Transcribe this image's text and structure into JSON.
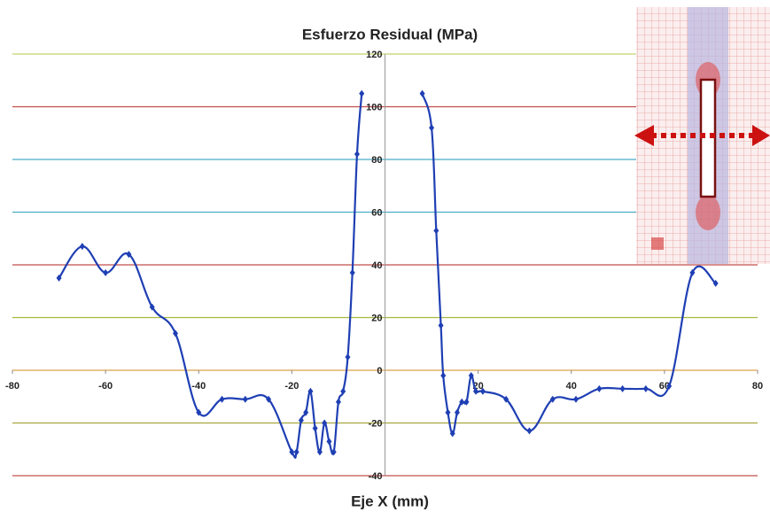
{
  "chart_data": {
    "type": "line",
    "title": "Esfuerzo Residual (MPa)",
    "x_label": "Eje X (mm)",
    "series": [
      {
        "color": "#1f3fb4",
        "x": [
          -70,
          -65,
          -60,
          -55,
          -50,
          -45,
          -40,
          -35,
          -30,
          -25,
          -20,
          -19,
          -18,
          -17,
          -16,
          -15,
          -14,
          -13,
          -12,
          -11,
          -10,
          -9,
          -8,
          -7,
          -6,
          -5
        ],
        "values": [
          35,
          47,
          37,
          44,
          24,
          14,
          -16,
          -11,
          -11,
          -11,
          -31,
          -31,
          -19,
          -16,
          -8,
          -22,
          -31,
          -20,
          -27,
          -31,
          -12,
          -8,
          5,
          37,
          82,
          105
        ]
      },
      {
        "color": "#1f3fb4",
        "x": [
          8,
          10,
          11,
          12,
          12.5,
          13.5,
          14.5,
          15.5,
          16.5,
          17.5,
          18.5,
          19.5,
          21,
          26,
          31,
          36,
          41,
          46,
          51,
          56,
          61,
          66,
          71
        ],
        "values": [
          105,
          92,
          53,
          17,
          -2,
          -16,
          -24,
          -16,
          -12,
          -12,
          -2,
          -8,
          -8,
          -11,
          -23,
          -11,
          -11,
          -7,
          -7,
          -7,
          -6,
          37,
          33
        ]
      }
    ],
    "xlim": [
      -80,
      80
    ],
    "xticks": [
      -80,
      -60,
      -40,
      -20,
      20,
      40,
      60,
      80
    ],
    "ylim": [
      -40,
      120
    ],
    "yticks": [
      -40,
      -20,
      0,
      20,
      40,
      60,
      80,
      100,
      120
    ],
    "grid": true,
    "grid_colors": [
      "#c0504d",
      "#a6a640",
      "#d9a04a",
      "#a6b83f",
      "#c0504d",
      "#4bacc6",
      "#4bacc6",
      "#c0504d",
      "#c3d46e"
    ]
  }
}
